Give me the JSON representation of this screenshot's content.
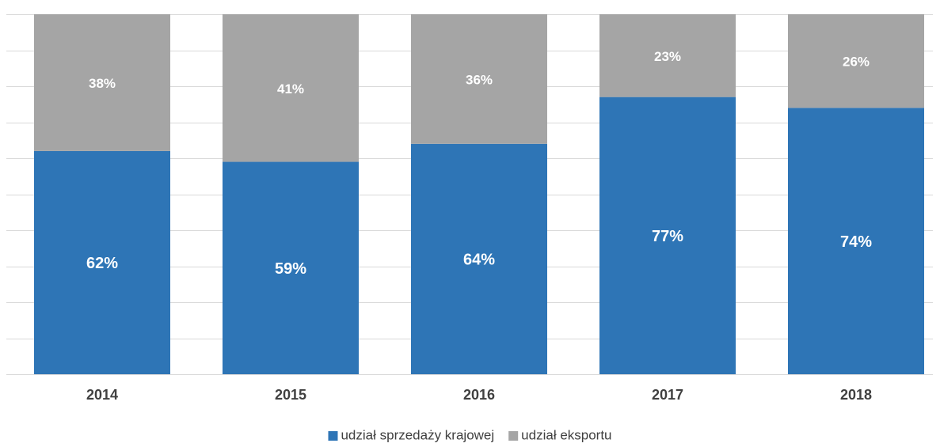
{
  "chart_data": {
    "type": "stacked_bar",
    "categories": [
      "2014",
      "2015",
      "2016",
      "2017",
      "2018"
    ],
    "series": [
      {
        "name": "udział sprzedaży krajowej",
        "color": "#2e75b6",
        "values": [
          62,
          59,
          64,
          77,
          74
        ],
        "value_labels": [
          "62%",
          "59%",
          "64%",
          "77%",
          "74%"
        ]
      },
      {
        "name": "udział eksportu",
        "color": "#a5a5a5",
        "values": [
          38,
          41,
          36,
          23,
          26
        ],
        "value_labels": [
          "38%",
          "41%",
          "36%",
          "23%",
          "26%"
        ]
      }
    ],
    "ylim": [
      0,
      100
    ],
    "yticks": [
      0,
      10,
      20,
      30,
      40,
      50,
      60,
      70,
      80,
      90,
      100
    ],
    "grid": true,
    "legend": "bottom"
  }
}
